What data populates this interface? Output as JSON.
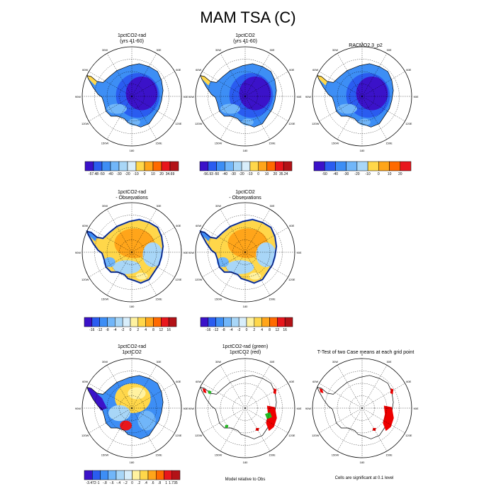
{
  "title": "MAM TSA (C)",
  "colors": {
    "ocean_bg": "#ffffff",
    "coast": "#000000",
    "grid": "#000000",
    "diff_sig": "#ee0000",
    "diff_green": "#22bb22",
    "diff_yellow": "#f5e04a"
  },
  "chart_data": [
    {
      "id": "p1",
      "type": "polar_map",
      "field": "absolute",
      "title": "1pctCO2-rad",
      "subtitle": "(yrs 41-60)",
      "lon_labels": [
        "0",
        "30E",
        "60E",
        "90E",
        "120E",
        "150E",
        "180",
        "150W",
        "120W",
        "90W",
        "60W",
        "30W"
      ],
      "colorbar": {
        "labels": [
          "-57.48",
          "-50",
          "-40",
          "-30",
          "-20",
          "-10",
          "0",
          "10",
          "20",
          "34.69"
        ],
        "colors": [
          "#3b12c9",
          "#2a5cf0",
          "#3d8ef5",
          "#71b6f9",
          "#a8d6f7",
          "#d8eefb",
          "#ffd74a",
          "#ffa51a",
          "#ff6a00",
          "#e8161c",
          "#b31217"
        ]
      }
    },
    {
      "id": "p2",
      "type": "polar_map",
      "field": "absolute",
      "title": "1pctCO2",
      "subtitle": "(yrs 41-60)",
      "lon_labels": [
        "0",
        "30E",
        "60E",
        "90E",
        "120E",
        "150E",
        "180",
        "150W",
        "120W",
        "90W",
        "60W",
        "30W"
      ],
      "colorbar": {
        "labels": [
          "-56.93",
          "-50",
          "-40",
          "-30",
          "-20",
          "-10",
          "0",
          "10",
          "20",
          "35.24"
        ],
        "colors": [
          "#3b12c9",
          "#2a5cf0",
          "#3d8ef5",
          "#71b6f9",
          "#a8d6f7",
          "#d8eefb",
          "#ffd74a",
          "#ffa51a",
          "#ff6a00",
          "#e8161c",
          "#b31217"
        ]
      }
    },
    {
      "id": "p3",
      "type": "polar_map",
      "field": "absolute",
      "title": "RACMO2.3_p2",
      "subtitle": "",
      "lon_labels": [
        "0",
        "30E",
        "60E",
        "90E",
        "120E",
        "150E",
        "180",
        "150W",
        "120W",
        "90W",
        "60W",
        "30W"
      ],
      "colorbar": {
        "labels": [
          "-50",
          "-40",
          "-30",
          "-20",
          "-10",
          "0",
          "10",
          "20"
        ],
        "colors": [
          "#3b12c9",
          "#2a5cf0",
          "#3d8ef5",
          "#71b6f9",
          "#a8d6f7",
          "#ffd74a",
          "#ffa51a",
          "#ff6a00",
          "#e8161c"
        ]
      }
    },
    {
      "id": "p4",
      "type": "polar_map",
      "field": "bias",
      "title": "1pctCO2-rad",
      "subtitle": "- Observations",
      "lon_labels": [
        "0",
        "30E",
        "60E",
        "90E",
        "120E",
        "150E",
        "180",
        "150W",
        "120W",
        "90W",
        "60W",
        "30W"
      ],
      "colorbar": {
        "labels": [
          "-16",
          "-12",
          "-8",
          "-4",
          "-2",
          "0",
          "2",
          "4",
          "8",
          "12",
          "16"
        ],
        "colors": [
          "#3b12c9",
          "#2a5cf0",
          "#3d8ef5",
          "#71b6f9",
          "#a8d6f7",
          "#d8eefb",
          "#fff2a0",
          "#ffd74a",
          "#ffa51a",
          "#ff6a00",
          "#e8161c",
          "#b31217"
        ]
      }
    },
    {
      "id": "p5",
      "type": "polar_map",
      "field": "bias",
      "title": "1pctCO2",
      "subtitle": "- Observations",
      "lon_labels": [
        "0",
        "30E",
        "60E",
        "90E",
        "120E",
        "150E",
        "180",
        "150W",
        "120W",
        "90W",
        "60W",
        "30W"
      ],
      "colorbar": {
        "labels": [
          "-16",
          "-12",
          "-8",
          "-4",
          "-2",
          "0",
          "2",
          "4",
          "8",
          "12",
          "16"
        ],
        "colors": [
          "#3b12c9",
          "#2a5cf0",
          "#3d8ef5",
          "#71b6f9",
          "#a8d6f7",
          "#d8eefb",
          "#fff2a0",
          "#ffd74a",
          "#ffa51a",
          "#ff6a00",
          "#e8161c",
          "#b31217"
        ]
      }
    },
    {
      "id": "p7",
      "type": "polar_map",
      "field": "diff",
      "title": "1pctCO2-rad",
      "subtitle": "1pctCO2",
      "lon_labels": [
        "0",
        "30E",
        "60E",
        "90E",
        "120E",
        "150E",
        "180",
        "150W",
        "120W",
        "90W",
        "60W",
        "30W"
      ],
      "colorbar": {
        "labels": [
          "-3.472",
          "-1",
          "-.8",
          "-.6",
          "-.4",
          "-.2",
          "0",
          ".2",
          ".4",
          ".6",
          ".8",
          "1",
          "1.735"
        ],
        "colors": [
          "#3b12c9",
          "#2a5cf0",
          "#3d8ef5",
          "#71b6f9",
          "#a8d6f7",
          "#d8eefb",
          "#fff2a0",
          "#ffd74a",
          "#ffa51a",
          "#ff6a00",
          "#e8161c",
          "#b31217"
        ]
      }
    },
    {
      "id": "p8",
      "type": "polar_map",
      "field": "sig_compare",
      "title": "1pctCO2-rad (green)",
      "subtitle": "1pctCO2 (red)",
      "note": "Model relative to Obs",
      "lon_labels": [
        "0",
        "30E",
        "60E",
        "90E",
        "120E",
        "150E",
        "180",
        "150W",
        "120W",
        "90W",
        "60W",
        "30W"
      ]
    },
    {
      "id": "p9",
      "type": "polar_map",
      "field": "ttest",
      "title": "T-Test of two Case means at each grid point",
      "subtitle": "",
      "note": "Cells are significant at 0.1 level",
      "lon_labels": [
        "0",
        "30E",
        "60E",
        "90E",
        "120E",
        "150E",
        "180",
        "150W",
        "120W",
        "90W",
        "60W",
        "30W"
      ]
    }
  ]
}
